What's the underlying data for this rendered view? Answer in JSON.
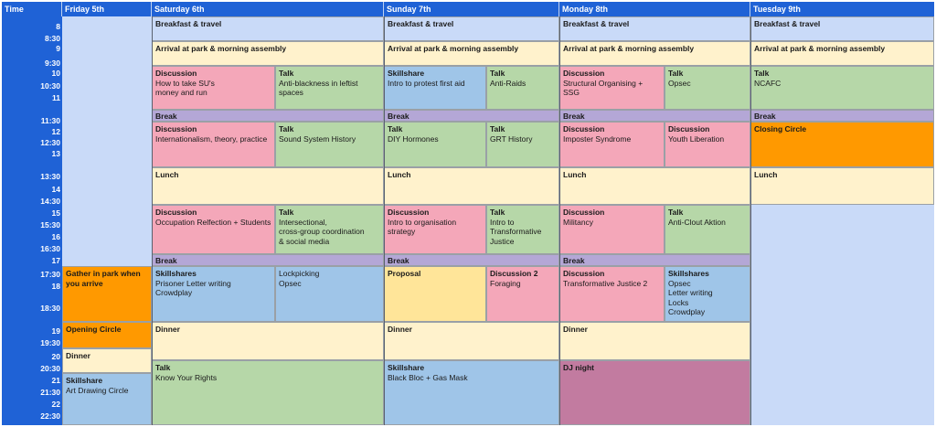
{
  "header": {
    "time": "Time",
    "days": [
      "Friday 5th",
      "Saturday 6th",
      "Sunday 7th",
      "Monday 8th",
      "Tuesday 9th"
    ]
  },
  "times": [
    "8",
    "8:30",
    "9",
    "9:30",
    "10",
    "10:30",
    "11",
    "11:30",
    "12",
    "12:30",
    "13",
    "13:30",
    "14",
    "14:30",
    "15",
    "15:30",
    "16",
    "16:30",
    "17",
    "17:30",
    "18",
    "18:30",
    "19",
    "19:30",
    "20",
    "20:30",
    "21",
    "21:30",
    "22",
    "22:30"
  ],
  "colors": {
    "header_blue": "#1f62d6",
    "day_background": "#c9daf8",
    "cream": "#fff2cc",
    "pink": "#f4a7b9",
    "green": "#b6d7a8",
    "blue": "#9fc5e8",
    "purple": "#b4a7d6",
    "orange": "#ff9900",
    "yellow": "#ffe599",
    "magenta": "#c27ba0"
  },
  "events": [
    {
      "title": "Gather in park when you arrive",
      "desc": ""
    },
    {
      "title": "Opening Circle",
      "desc": ""
    },
    {
      "title": "Dinner",
      "desc": ""
    },
    {
      "title": "Skillshare",
      "desc": "Art Drawing Circle"
    },
    {
      "title": "Breakfast & travel",
      "desc": ""
    },
    {
      "title": "Arrival at park & morning assembly",
      "desc": ""
    },
    {
      "title": "Discussion",
      "desc": "How to take SU's\n money and run"
    },
    {
      "title": "Talk",
      "desc": "Anti-blackness in leftist spaces"
    },
    {
      "title": "Break",
      "desc": ""
    },
    {
      "title": "Discussion",
      "desc": "Internationalism, theory, practice"
    },
    {
      "title": "Talk",
      "desc": "Sound System History"
    },
    {
      "title": "Lunch",
      "desc": ""
    },
    {
      "title": "Discussion",
      "desc": "Occupation Relfection + Students"
    },
    {
      "title": "Talk",
      "desc": "Intersectional,\ncross-group coordination\n& social media"
    },
    {
      "title": "Break",
      "desc": ""
    },
    {
      "title": "Skillshares",
      "desc": "Prisoner Letter writing\nCrowdplay"
    },
    {
      "title": "",
      "desc": "Lockpicking\nOpsec"
    },
    {
      "title": "Dinner",
      "desc": ""
    },
    {
      "title": "Talk",
      "desc": "Know Your Rights"
    },
    {
      "title": "Breakfast & travel",
      "desc": ""
    },
    {
      "title": "Arrival at park & morning assembly",
      "desc": ""
    },
    {
      "title": "Skillshare",
      "desc": "Intro to protest first aid"
    },
    {
      "title": "Talk",
      "desc": "Anti-Raids"
    },
    {
      "title": "Break",
      "desc": ""
    },
    {
      "title": "Talk",
      "desc": "DIY Hormones"
    },
    {
      "title": "Talk",
      "desc": "GRT History"
    },
    {
      "title": "Lunch",
      "desc": ""
    },
    {
      "title": "Discussion",
      "desc": "Intro to organisation strategy"
    },
    {
      "title": "Talk",
      "desc": "Intro to\nTransformative\nJustice"
    },
    {
      "title": "Break",
      "desc": ""
    },
    {
      "title": "Proposal",
      "desc": ""
    },
    {
      "title": "Discussion 2",
      "desc": "Foraging"
    },
    {
      "title": "Dinner",
      "desc": ""
    },
    {
      "title": "Skillshare",
      "desc": "Black Bloc + Gas Mask"
    },
    {
      "title": "Breakfast & travel",
      "desc": ""
    },
    {
      "title": "Arrival at park & morning assembly",
      "desc": ""
    },
    {
      "title": "Discussion",
      "desc": "Structural Organising +\nSSG"
    },
    {
      "title": "Talk",
      "desc": "Opsec"
    },
    {
      "title": "Break",
      "desc": ""
    },
    {
      "title": "Discussion",
      "desc": "Imposter Syndrome"
    },
    {
      "title": "Discussion",
      "desc": "Youth Liberation"
    },
    {
      "title": "Lunch",
      "desc": ""
    },
    {
      "title": "Discussion",
      "desc": "Militancy"
    },
    {
      "title": "Talk",
      "desc": "Anti-Clout Aktion"
    },
    {
      "title": "Break",
      "desc": ""
    },
    {
      "title": "Discussion",
      "desc": "Transformative Justice 2"
    },
    {
      "title": "Skillshares",
      "desc": "Opsec\nLetter writing\nLocks\nCrowdplay"
    },
    {
      "title": "Dinner",
      "desc": ""
    },
    {
      "title": "DJ night",
      "desc": ""
    },
    {
      "title": "Breakfast & travel",
      "desc": ""
    },
    {
      "title": "Arrival at park & morning assembly",
      "desc": ""
    },
    {
      "title": "Talk",
      "desc": "NCAFC"
    },
    {
      "title": "Break",
      "desc": ""
    },
    {
      "title": "Closing Circle",
      "desc": ""
    },
    {
      "title": "Lunch",
      "desc": ""
    }
  ]
}
